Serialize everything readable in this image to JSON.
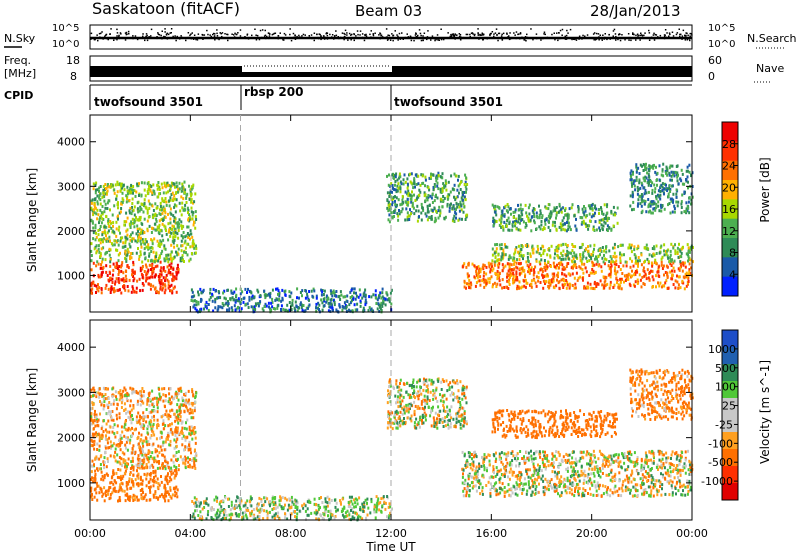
{
  "header": {
    "station": "Saskatoon (fitACF)",
    "beam": "Beam 03",
    "date": "28/Jan/2013"
  },
  "side_labels": {
    "nsky": "N.Sky",
    "freq_top": "Freq.",
    "freq_unit": "[MHz]",
    "cpid": "CPID",
    "nsearch": "N.Search",
    "nave": "Nave"
  },
  "nsky_axis": {
    "top": "10^5",
    "bottom": "10^0"
  },
  "freq_axis": {
    "ticks": [
      "18",
      "8"
    ],
    "min": 8,
    "max": 18
  },
  "nave_axis": {
    "ticks": [
      "60",
      "0"
    ],
    "min": 0,
    "max": 60
  },
  "cpid_segments": [
    {
      "label": "twofsound 3501",
      "start_h": 0,
      "end_h": 6
    },
    {
      "label": "rbsp 200",
      "start_h": 6,
      "end_h": 12
    },
    {
      "label": "twofsound 3501",
      "start_h": 12,
      "end_h": 24
    }
  ],
  "colors": {
    "power_scale": [
      "#0020ff",
      "#1a5aa8",
      "#2e8b57",
      "#4caf50",
      "#a8d800",
      "#ffb000",
      "#ff7000",
      "#ff3000",
      "#ee0000"
    ],
    "velocity_scale": [
      "#1e4ec8",
      "#2060b0",
      "#2e8b57",
      "#50c838",
      "#c8c8c8",
      "#c8c8c8",
      "#ffa020",
      "#ff7000",
      "#ff3000",
      "#e00000"
    ]
  },
  "chart_data": [
    {
      "type": "heatmap",
      "panel": "power",
      "ylabel": "Slant Range [km]",
      "colorbar_label": "Power [dB]",
      "colorbar_ticks": [
        "28",
        "24",
        "20",
        "16",
        "12",
        "8",
        "4"
      ],
      "x_ticks": [
        "00:00",
        "04:00",
        "08:00",
        "12:00",
        "16:00",
        "20:00",
        "00:00"
      ],
      "x_range_hours": [
        0,
        24
      ],
      "y_range_km": [
        180,
        4600
      ],
      "y_ticks": [
        1000,
        2000,
        3000,
        4000
      ],
      "scatter_regions": [
        {
          "h0": 0.0,
          "h1": 3.5,
          "r0": 600,
          "r1": 1300,
          "power_db": 28
        },
        {
          "h0": 0.0,
          "h1": 4.2,
          "r0": 1300,
          "r1": 3100,
          "power_db": 14
        },
        {
          "h0": 4.0,
          "h1": 12.0,
          "r0": 180,
          "r1": 700,
          "power_db": 6
        },
        {
          "h0": 11.8,
          "h1": 15.0,
          "r0": 2200,
          "r1": 3300,
          "power_db": 10
        },
        {
          "h0": 14.8,
          "h1": 24.0,
          "r0": 700,
          "r1": 1300,
          "power_db": 24
        },
        {
          "h0": 16.0,
          "h1": 24.0,
          "r0": 1300,
          "r1": 1700,
          "power_db": 14
        },
        {
          "h0": 16.0,
          "h1": 21.0,
          "r0": 2000,
          "r1": 2600,
          "power_db": 10
        },
        {
          "h0": 21.5,
          "h1": 24.0,
          "r0": 2400,
          "r1": 3500,
          "power_db": 8
        }
      ]
    },
    {
      "type": "heatmap",
      "panel": "velocity",
      "ylabel": "Slant Range [km]",
      "xlabel": "Time UT",
      "colorbar_label": "Velocity [m s^-1]",
      "colorbar_ticks": [
        "1000",
        "500",
        "100",
        "25",
        "-25",
        "-100",
        "-500",
        "-1000"
      ],
      "x_ticks": [
        "00:00",
        "04:00",
        "08:00",
        "12:00",
        "16:00",
        "20:00",
        "00:00"
      ],
      "x_range_hours": [
        0,
        24
      ],
      "y_range_km": [
        180,
        4600
      ],
      "y_ticks": [
        1000,
        2000,
        3000,
        4000
      ],
      "scatter_regions": [
        {
          "h0": 0.0,
          "h1": 3.5,
          "r0": 600,
          "r1": 1300,
          "velocity": -200
        },
        {
          "h0": 0.0,
          "h1": 4.2,
          "r0": 1300,
          "r1": 3100,
          "velocity": -80
        },
        {
          "h0": 4.0,
          "h1": 12.0,
          "r0": 180,
          "r1": 700,
          "velocity": 50
        },
        {
          "h0": 11.8,
          "h1": 15.0,
          "r0": 2200,
          "r1": 3300,
          "velocity": 0
        },
        {
          "h0": 14.8,
          "h1": 24.0,
          "r0": 700,
          "r1": 1700,
          "velocity": 0
        },
        {
          "h0": 16.0,
          "h1": 21.0,
          "r0": 2000,
          "r1": 2600,
          "velocity": -300
        },
        {
          "h0": 21.5,
          "h1": 24.0,
          "r0": 2400,
          "r1": 3500,
          "velocity": -150
        }
      ]
    }
  ]
}
